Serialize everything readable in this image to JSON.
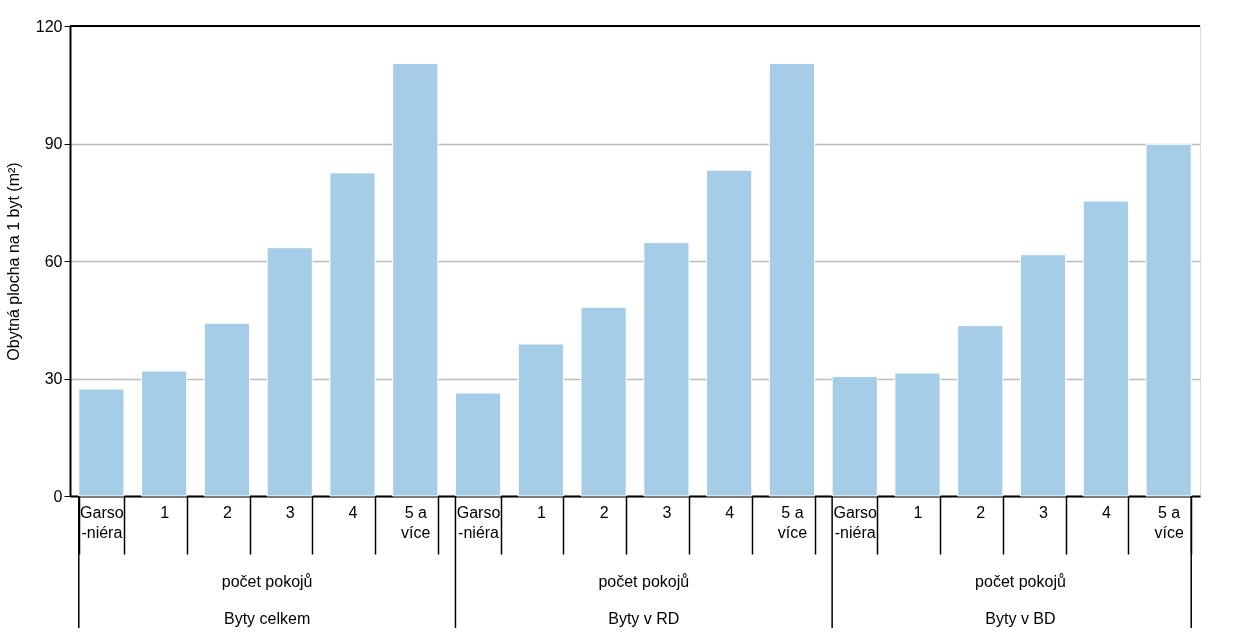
{
  "chart_data": {
    "type": "bar",
    "ylabel": "Obytná plocha na 1 byt (m²)",
    "categories": [
      "Garso\n-niéra",
      "1",
      "2",
      "3",
      "4",
      "5 a\nvíce",
      "Garso\n-niéra",
      "1",
      "2",
      "3",
      "4",
      "5 a\nvíce",
      "Garso\n-niéra",
      "1",
      "2",
      "3",
      "4",
      "5 a\nvíce"
    ],
    "values": [
      27.3,
      31.9,
      44.1,
      63.4,
      82.5,
      110.4,
      26.3,
      38.8,
      48.2,
      64.7,
      83.2,
      110.4,
      30.5,
      31.4,
      43.5,
      61.6,
      75.3,
      89.8
    ],
    "color": "#a6cde7",
    "ylim": [
      0,
      120
    ],
    "yticks": [
      0,
      30,
      60,
      90,
      120
    ],
    "grid": "y",
    "annotations": [
      "počet pokojů",
      "Byty celkem",
      "počet pokojů",
      "Byty v RD",
      "počet pokojů",
      "Byty v BD"
    ]
  }
}
